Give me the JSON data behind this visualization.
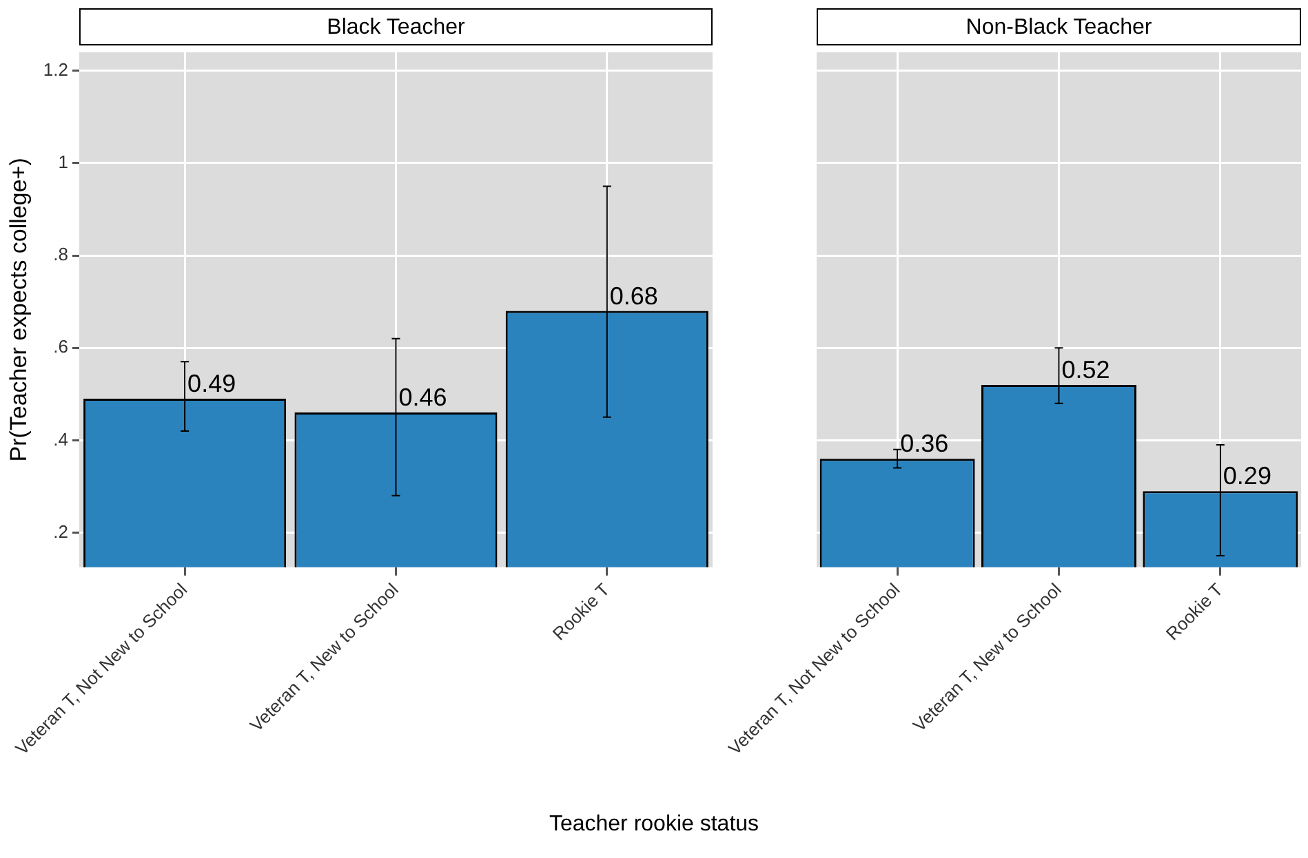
{
  "chart_data": [
    {
      "type": "bar",
      "title": "Black Teacher",
      "ylabel": "Pr(Teacher expects college+)",
      "xlabel": "Teacher rookie status",
      "categories": [
        "Veteran T, Not New to School",
        "Veteran T, New to School",
        "Rookie T"
      ],
      "values": [
        0.49,
        0.46,
        0.68
      ],
      "errors": [
        [
          0.42,
          0.57
        ],
        [
          0.28,
          0.62
        ],
        [
          0.45,
          0.95
        ]
      ],
      "color": "#2b83be",
      "data_labels": true,
      "ylim": [
        0.125,
        1.24
      ],
      "yticks": [
        {
          "value": 0.2,
          "label": ".2"
        },
        {
          "value": 0.4,
          "label": ".4"
        },
        {
          "value": 0.6,
          "label": ".6"
        },
        {
          "value": 0.8,
          "label": ".8"
        },
        1,
        1.2
      ],
      "grid": true
    },
    {
      "type": "bar",
      "title": "Non-Black Teacher",
      "categories": [
        "Veteran T, Not New to School",
        "Veteran T, New to School",
        "Rookie T"
      ],
      "values": [
        0.36,
        0.52,
        0.29
      ],
      "errors": [
        [
          0.34,
          0.38
        ],
        [
          0.48,
          0.6
        ],
        [
          0.15,
          0.39
        ]
      ],
      "color": "#2b83be",
      "data_labels": true,
      "ylim": [
        0.125,
        1.24
      ],
      "yticks": [
        {
          "value": 0.2,
          "label": null
        },
        {
          "value": 0.4,
          "label": null
        },
        {
          "value": 0.6,
          "label": null
        },
        {
          "value": 0.8,
          "label": null
        },
        {
          "value": 1,
          "label": null
        },
        {
          "value": 1.2,
          "label": null
        }
      ],
      "grid": true,
      "tick_labels": "x"
    }
  ]
}
